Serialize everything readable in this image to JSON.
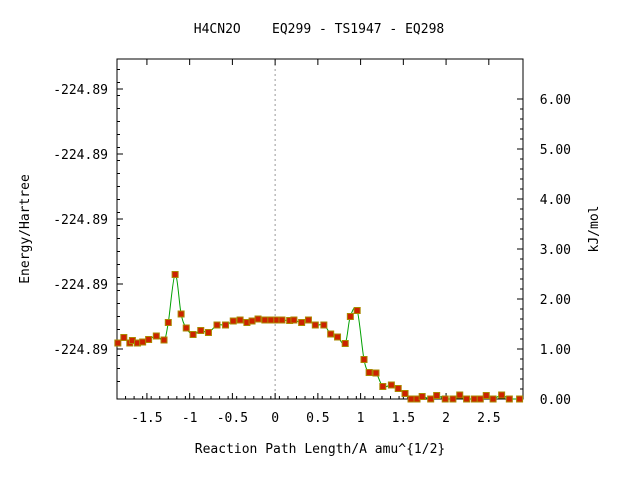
{
  "chart_data": {
    "type": "line",
    "title": "H4CN2O    EQ299 - TS1947 - EQ298",
    "xlabel": "Reaction Path Length/A amu^{1/2}",
    "ylabel": "Energy/Hartree",
    "y2label": "kJ/mol",
    "xlim": [
      -1.85,
      2.9
    ],
    "xticks": [
      -1.5,
      -1,
      -0.5,
      0,
      0.5,
      1,
      1.5,
      2,
      2.5
    ],
    "xtick_labels": [
      "-1.5",
      "-1",
      "-0.5",
      "0",
      "0.5",
      "1",
      "1.5",
      "2",
      "2.5"
    ],
    "y2lim": [
      0.0,
      6.0
    ],
    "y2ticks": [
      0,
      1,
      2,
      3,
      4,
      5,
      6
    ],
    "y2tick_labels": [
      "0.00",
      "1.00",
      "2.00",
      "3.00",
      "4.00",
      "5.00",
      "6.00"
    ],
    "y_left_ticks": [
      1,
      2.3,
      3.6,
      4.9,
      6.2
    ],
    "y_left_tick_labels": [
      "-224.89",
      "-224.89",
      "-224.89",
      "-224.89",
      "-224.89"
    ],
    "ts_x": 0,
    "colors": {
      "line": "#00a000",
      "marker_fill": "#cc2200",
      "marker_edge": "#aa8800",
      "ts_line": "#999999"
    },
    "series": [
      {
        "x": [
          -1.84,
          -1.77,
          -1.7,
          -1.67,
          -1.61,
          -1.55,
          -1.48,
          -1.39,
          -1.3,
          -1.25,
          -1.17,
          -1.1,
          -1.04,
          -0.96,
          -0.87,
          -0.78,
          -0.68,
          -0.58,
          -0.49,
          -0.41,
          -0.33,
          -0.27,
          -0.2,
          -0.12,
          -0.05,
          0.02,
          0.08,
          0.17,
          0.22,
          0.31,
          0.39,
          0.47,
          0.57,
          0.65,
          0.73,
          0.82,
          0.88,
          0.96,
          1.04,
          1.1,
          1.18,
          1.26,
          1.36,
          1.44,
          1.52,
          1.59,
          1.66,
          1.72,
          1.82,
          1.89,
          1.99,
          2.08,
          2.16,
          2.24,
          2.33,
          2.4,
          2.47,
          2.55,
          2.65,
          2.74,
          2.86
        ],
        "y": [
          1.12,
          1.23,
          1.12,
          1.17,
          1.12,
          1.14,
          1.19,
          1.26,
          1.18,
          1.53,
          2.49,
          1.7,
          1.42,
          1.29,
          1.37,
          1.33,
          1.48,
          1.48,
          1.56,
          1.58,
          1.53,
          1.56,
          1.6,
          1.58,
          1.58,
          1.58,
          1.58,
          1.57,
          1.58,
          1.53,
          1.58,
          1.48,
          1.48,
          1.3,
          1.24,
          1.11,
          1.65,
          1.77,
          0.79,
          0.53,
          0.52,
          0.25,
          0.28,
          0.21,
          0.11,
          0.0,
          0.0,
          0.05,
          0.0,
          0.07,
          0.0,
          0.0,
          0.08,
          0.0,
          0.0,
          0.0,
          0.07,
          0.0,
          0.08,
          0.0,
          0.0
        ]
      }
    ]
  }
}
